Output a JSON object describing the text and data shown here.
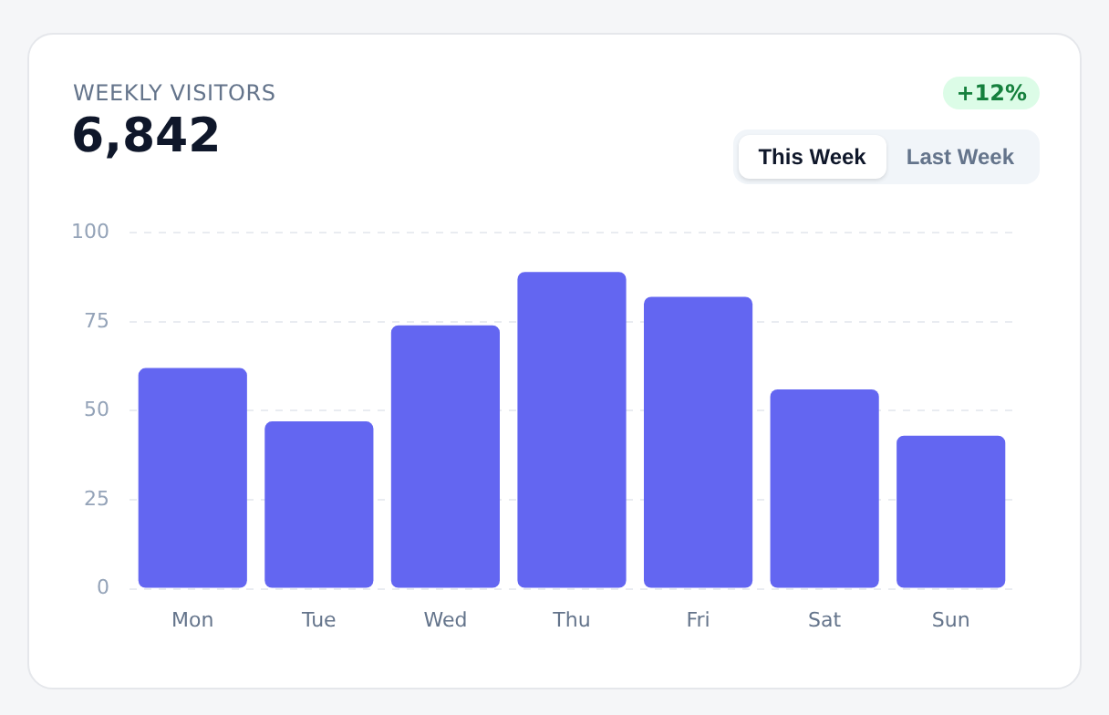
{
  "chart_data": {
    "type": "bar",
    "title": "WEEKLY VISITORS",
    "subtitle": "6,842",
    "annotations": [
      "+12%",
      "This Week",
      "Last Week"
    ],
    "categories": [
      "Mon",
      "Tue",
      "Wed",
      "Thu",
      "Fri",
      "Sat",
      "Sun"
    ],
    "values": [
      62,
      47,
      74,
      89,
      82,
      56,
      43
    ],
    "color": "#6366f1",
    "ylim": [
      0,
      100
    ],
    "yticks": [
      0,
      25,
      50,
      75,
      100
    ],
    "grid": "y",
    "legend": false
  }
}
